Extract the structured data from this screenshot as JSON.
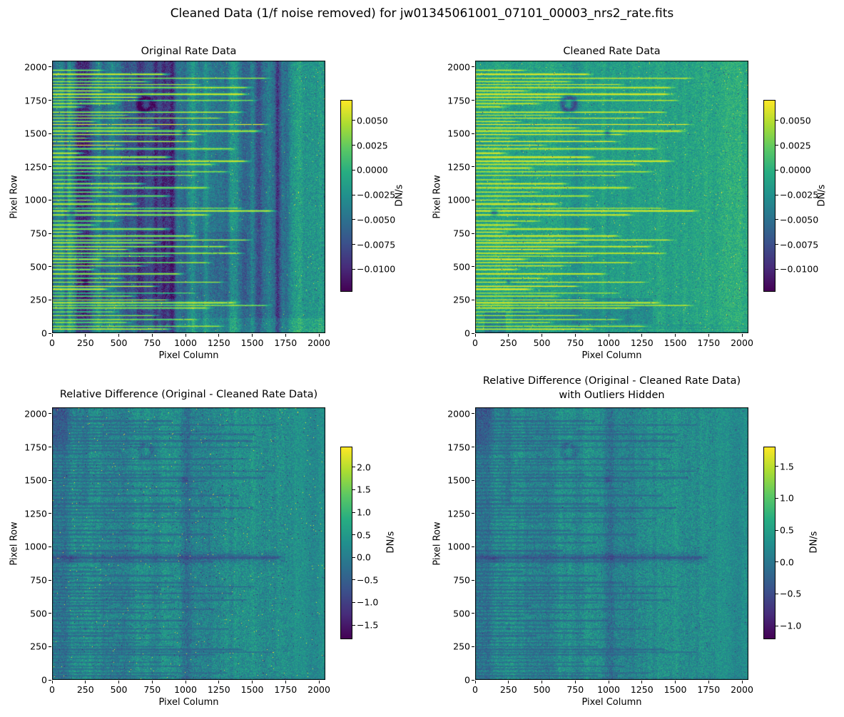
{
  "figure": {
    "suptitle": "Cleaned Data (1/f noise removed) for jw01345061001_07101_00003_nrs2_rate.fits",
    "background": "#ffffff"
  },
  "colors": {
    "text": "#000000",
    "spine": "#000000",
    "viridis_stops": [
      [
        68,
        1,
        84
      ],
      [
        71,
        44,
        122
      ],
      [
        59,
        81,
        139
      ],
      [
        44,
        113,
        142
      ],
      [
        33,
        144,
        141
      ],
      [
        39,
        173,
        129
      ],
      [
        92,
        200,
        99
      ],
      [
        170,
        220,
        50
      ],
      [
        253,
        231,
        37
      ]
    ]
  },
  "chart_data": [
    {
      "type": "heatmap",
      "title": "Original Rate Data",
      "xlabel": "Pixel Column",
      "ylabel": "Pixel Row",
      "xlim": [
        0,
        2048
      ],
      "ylim": [
        0,
        2048
      ],
      "xticks": [
        0,
        250,
        500,
        750,
        1000,
        1250,
        1500,
        1750,
        2000
      ],
      "yticks": [
        0,
        250,
        500,
        750,
        1000,
        1250,
        1500,
        1750,
        2000
      ],
      "colormap": "viridis",
      "grid": false,
      "style": "original",
      "colorbar": {
        "label": "DN/s",
        "vmin": -0.0122,
        "vmax": 0.007,
        "ticks": [
          {
            "v": 0.005,
            "label": "0.0050"
          },
          {
            "v": 0.0025,
            "label": "0.0025"
          },
          {
            "v": 0.0,
            "label": "0.0000"
          },
          {
            "v": -0.0025,
            "label": "−0.0025"
          },
          {
            "v": -0.005,
            "label": "−0.0050"
          },
          {
            "v": -0.0075,
            "label": "−0.0075"
          },
          {
            "v": -0.01,
            "label": "−0.0100"
          }
        ]
      },
      "description": "2048x2048 detector rate image with vertical 1/f noise banding, dark column blocks, bright horizontal cosmic-ray streaks starting at the left edge, and a greener region right of column ~1750."
    },
    {
      "type": "heatmap",
      "title": "Cleaned Rate Data",
      "xlabel": "Pixel Column",
      "ylabel": "Pixel Row",
      "xlim": [
        0,
        2048
      ],
      "ylim": [
        0,
        2048
      ],
      "xticks": [
        0,
        250,
        500,
        750,
        1000,
        1250,
        1500,
        1750,
        2000
      ],
      "yticks": [
        0,
        250,
        500,
        750,
        1000,
        1250,
        1500,
        1750,
        2000
      ],
      "colormap": "viridis",
      "grid": false,
      "style": "cleaned",
      "colorbar": {
        "label": "DN/s",
        "vmin": -0.0122,
        "vmax": 0.007,
        "ticks": [
          {
            "v": 0.005,
            "label": "0.0050"
          },
          {
            "v": 0.0025,
            "label": "0.0025"
          },
          {
            "v": 0.0,
            "label": "0.0000"
          },
          {
            "v": -0.0025,
            "label": "−0.0025"
          },
          {
            "v": -0.005,
            "label": "−0.0050"
          },
          {
            "v": -0.0075,
            "label": "−0.0075"
          },
          {
            "v": -0.01,
            "label": "−0.0100"
          }
        ]
      },
      "description": "Same detector image after 1/f noise removal: uniform green background, vertical banding suppressed, bright horizontal streaks and dark blob artifacts remain, darker teal patches near lower rows."
    },
    {
      "type": "heatmap",
      "title": "Relative Difference (Original - Cleaned Rate Data)",
      "xlabel": "Pixel Column",
      "ylabel": "Pixel Row",
      "xlim": [
        0,
        2048
      ],
      "ylim": [
        0,
        2048
      ],
      "xticks": [
        0,
        250,
        500,
        750,
        1000,
        1250,
        1500,
        1750,
        2000
      ],
      "yticks": [
        0,
        250,
        500,
        750,
        1000,
        1250,
        1500,
        1750,
        2000
      ],
      "colormap": "viridis",
      "grid": false,
      "style": "diff",
      "colorbar": {
        "label": "DN/s",
        "vmin": -1.8,
        "vmax": 2.44,
        "ticks": [
          {
            "v": 2.0,
            "label": "2.0"
          },
          {
            "v": 1.5,
            "label": "1.5"
          },
          {
            "v": 1.0,
            "label": "1.0"
          },
          {
            "v": 0.5,
            "label": "0.5"
          },
          {
            "v": 0.0,
            "label": "0.0"
          },
          {
            "v": -0.5,
            "label": "−0.5"
          },
          {
            "v": -1.0,
            "label": "−1.0"
          },
          {
            "v": -1.5,
            "label": "−1.5"
          }
        ]
      },
      "description": "Speckled green relative-difference map with dark teal vertical band near column 1000, dark horizontal residual streaks, dark smear near row 920, dark blobs in the upper-left corner and scattered bright outlier pixels."
    },
    {
      "type": "heatmap",
      "title_lines": [
        "Relative Difference (Original - Cleaned Rate Data)",
        "with Outliers Hidden"
      ],
      "xlabel": "Pixel Column",
      "ylabel": "Pixel Row",
      "xlim": [
        0,
        2048
      ],
      "ylim": [
        0,
        2048
      ],
      "xticks": [
        0,
        250,
        500,
        750,
        1000,
        1250,
        1500,
        1750,
        2000
      ],
      "yticks": [
        0,
        250,
        500,
        750,
        1000,
        1250,
        1500,
        1750,
        2000
      ],
      "colormap": "viridis",
      "grid": false,
      "style": "diff_hidden",
      "colorbar": {
        "label": "DN/s",
        "vmin": -1.2,
        "vmax": 1.8,
        "ticks": [
          {
            "v": 1.5,
            "label": "1.5"
          },
          {
            "v": 1.0,
            "label": "1.0"
          },
          {
            "v": 0.5,
            "label": "0.5"
          },
          {
            "v": 0.0,
            "label": "0.0"
          },
          {
            "v": -0.5,
            "label": "−0.5"
          },
          {
            "v": -1.0,
            "label": "−1.0"
          }
        ]
      },
      "description": "Same relative-difference map with extreme outlier pixels clipped, tighter color range."
    }
  ],
  "render_features": {
    "streaks": [
      [
        1975,
        420
      ],
      [
        1945,
        900
      ],
      [
        1915,
        1660
      ],
      [
        1890,
        760
      ],
      [
        1868,
        1140
      ],
      [
        1845,
        1520
      ],
      [
        1820,
        430
      ],
      [
        1795,
        1500
      ],
      [
        1772,
        700
      ],
      [
        1748,
        1560
      ],
      [
        1725,
        520
      ],
      [
        1700,
        260
      ],
      [
        1660,
        1460
      ],
      [
        1638,
        620
      ],
      [
        1615,
        1310
      ],
      [
        1590,
        370
      ],
      [
        1568,
        1650
      ],
      [
        1542,
        820
      ],
      [
        1518,
        1600
      ],
      [
        1492,
        1160
      ],
      [
        1465,
        320
      ],
      [
        1440,
        1100
      ],
      [
        1412,
        560
      ],
      [
        1385,
        1400
      ],
      [
        1352,
        260
      ],
      [
        1322,
        920
      ],
      [
        1292,
        1510
      ],
      [
        1268,
        1260
      ],
      [
        1240,
        470
      ],
      [
        1212,
        1360
      ],
      [
        1185,
        1120
      ],
      [
        1152,
        320
      ],
      [
        1122,
        720
      ],
      [
        1092,
        1210
      ],
      [
        1060,
        510
      ],
      [
        1030,
        910
      ],
      [
        1000,
        360
      ],
      [
        970,
        660
      ],
      [
        938,
        1460
      ],
      [
        918,
        1700
      ],
      [
        888,
        1210
      ],
      [
        842,
        520
      ],
      [
        812,
        360
      ],
      [
        782,
        910
      ],
      [
        758,
        260
      ],
      [
        730,
        1110
      ],
      [
        700,
        1520
      ],
      [
        678,
        820
      ],
      [
        650,
        1360
      ],
      [
        628,
        620
      ],
      [
        600,
        1460
      ],
      [
        578,
        920
      ],
      [
        555,
        420
      ],
      [
        530,
        1220
      ],
      [
        505,
        720
      ],
      [
        478,
        360
      ],
      [
        445,
        1010
      ],
      [
        412,
        560
      ],
      [
        382,
        1320
      ],
      [
        352,
        820
      ],
      [
        330,
        460
      ],
      [
        300,
        1110
      ],
      [
        278,
        660
      ],
      [
        250,
        920
      ],
      [
        228,
        1420
      ],
      [
        208,
        1660
      ],
      [
        188,
        1220
      ],
      [
        160,
        520
      ],
      [
        132,
        820
      ],
      [
        102,
        1120
      ],
      [
        80,
        620
      ],
      [
        52,
        1320
      ],
      [
        30,
        920
      ]
    ],
    "blobs": [
      {
        "col": 700,
        "row": 1720,
        "rad": 48,
        "type": "ring"
      },
      {
        "col": 990,
        "row": 1505,
        "rad": 24,
        "type": "dot"
      },
      {
        "col": 145,
        "row": 905,
        "rad": 26,
        "type": "dot"
      },
      {
        "col": 250,
        "row": 385,
        "rad": 16,
        "type": "dot"
      }
    ],
    "notes": "streaks = [pixel_row, end_column] of bright horizontal traces beginning at column 0; blobs are dark detector artifacts."
  }
}
